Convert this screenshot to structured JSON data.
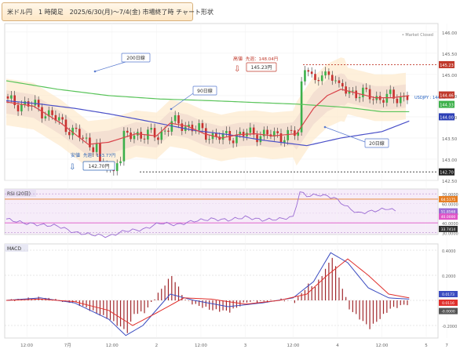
{
  "title": "米ドル円　1 時間足　2025/6/30(月)〜7/4(金) 市場終了時 チャート形状",
  "market_closed": "• Market Closed",
  "chart_data": [
    {
      "type": "candlestick",
      "panel": "price",
      "series": [
        {
          "name": "200日線",
          "color": "#59c45a",
          "values": [
            [
              0,
              144.85
            ],
            [
              15,
              144.65
            ],
            [
              30,
              144.5
            ],
            [
              45,
              144.42
            ],
            [
              60,
              144.38
            ],
            [
              75,
              144.33
            ],
            [
              85,
              144.3
            ],
            [
              100,
              144.22
            ],
            [
              110,
              144.12
            ]
          ]
        },
        {
          "name": "90日線",
          "color": "#4a50c8",
          "values": [
            [
              0,
              144.38
            ],
            [
              10,
              144.3
            ],
            [
              20,
              144.2
            ],
            [
              30,
              144.07
            ],
            [
              40,
              143.92
            ],
            [
              55,
              143.68
            ],
            [
              65,
              143.58
            ],
            [
              75,
              143.45
            ],
            [
              88,
              143.32
            ],
            [
              98,
              143.5
            ],
            [
              110,
              143.65
            ],
            [
              118,
              143.9
            ]
          ]
        },
        {
          "name": "20日線",
          "color": "#d9434a",
          "values": [
            [
              0,
              144.35
            ],
            [
              8,
              144.25
            ],
            [
              16,
              143.85
            ],
            [
              24,
              143.35
            ],
            [
              30,
              143.4
            ],
            [
              38,
              143.6
            ],
            [
              44,
              143.55
            ],
            [
              48,
              143.85
            ],
            [
              53,
              143.78
            ],
            [
              58,
              143.6
            ],
            [
              63,
              143.5
            ],
            [
              68,
              143.58
            ],
            [
              73,
              143.6
            ],
            [
              78,
              143.55
            ],
            [
              85,
              143.6
            ],
            [
              90,
              144.2
            ],
            [
              94,
              144.5
            ],
            [
              98,
              144.65
            ],
            [
              103,
              144.55
            ],
            [
              108,
              144.45
            ],
            [
              113,
              144.45
            ],
            [
              118,
              144.5
            ]
          ]
        }
      ],
      "x_ticks": [
        "12:00",
        "7月",
        "12:00",
        "2",
        "12:00",
        "3",
        "12:00",
        "4",
        "12:00",
        "5",
        "7"
      ],
      "y_ticks": [
        142.5,
        143.0,
        143.5,
        144.0,
        144.5,
        145.0,
        145.5,
        146.0
      ],
      "ylim": [
        142.5,
        146.2
      ],
      "annotations": {
        "high_label": "高値",
        "high_prev": "先週：148.04円",
        "high_value": "145.23円",
        "low_label": "安値",
        "low_prev": "先週：143.77円",
        "low_value": "142.70円",
        "line_200": "200日線",
        "line_90": "90日線",
        "line_20": "20日線",
        "symbol": "USDJPY : 144.47"
      },
      "price_tags": {
        "top": "145.23",
        "red": "144.46",
        "green": "144.33",
        "blue": "144.00",
        "bottom": "142.70"
      }
    },
    {
      "type": "line",
      "panel": "rsi",
      "title": "RSI (20日)",
      "series": [
        {
          "name": "RSI",
          "color": "#9b6bd3",
          "values": [
            [
              0,
              44
            ],
            [
              5,
              40
            ],
            [
              10,
              38
            ],
            [
              15,
              37
            ],
            [
              20,
              30
            ],
            [
              25,
              28
            ],
            [
              30,
              26
            ],
            [
              35,
              32
            ],
            [
              40,
              33
            ],
            [
              45,
              40
            ],
            [
              50,
              38
            ],
            [
              55,
              42
            ],
            [
              60,
              44
            ],
            [
              65,
              43
            ],
            [
              70,
              46
            ],
            [
              75,
              43
            ],
            [
              80,
              44
            ],
            [
              84,
              46
            ],
            [
              86,
              72
            ],
            [
              88,
              68
            ],
            [
              92,
              69
            ],
            [
              96,
              66
            ],
            [
              100,
              56
            ],
            [
              103,
              50
            ],
            [
              107,
              52
            ],
            [
              112,
              55
            ],
            [
              114,
              52
            ]
          ]
        }
      ],
      "y_ticks": [
        "70.0000",
        "60.0000",
        "50.0000",
        "40.0000",
        "30.0000"
      ],
      "ylim": [
        28,
        75
      ],
      "tags": {
        "top": "64.5175",
        "mid1": "51.8568",
        "mid2": "40.0000",
        "bottom": "33.7414"
      }
    },
    {
      "type": "bar+line",
      "panel": "macd",
      "title": "MACD",
      "series": [
        {
          "name": "MACD",
          "color": "#3b4cc0",
          "values": [
            [
              0,
              0.0
            ],
            [
              10,
              0.02
            ],
            [
              20,
              -0.02
            ],
            [
              30,
              -0.15
            ],
            [
              35,
              -0.28
            ],
            [
              40,
              -0.2
            ],
            [
              48,
              0.05
            ],
            [
              55,
              0.0
            ],
            [
              65,
              -0.05
            ],
            [
              75,
              -0.02
            ],
            [
              84,
              0.02
            ],
            [
              90,
              0.15
            ],
            [
              95,
              0.38
            ],
            [
              100,
              0.3
            ],
            [
              106,
              0.1
            ],
            [
              112,
              0.02
            ],
            [
              118,
              0.01
            ]
          ]
        },
        {
          "name": "Signal",
          "color": "#e0302c",
          "values": [
            [
              0,
              0.0
            ],
            [
              10,
              0.01
            ],
            [
              20,
              -0.01
            ],
            [
              30,
              -0.08
            ],
            [
              37,
              -0.2
            ],
            [
              44,
              -0.1
            ],
            [
              52,
              0.02
            ],
            [
              60,
              0.01
            ],
            [
              70,
              -0.03
            ],
            [
              80,
              0.0
            ],
            [
              88,
              0.05
            ],
            [
              94,
              0.2
            ],
            [
              100,
              0.33
            ],
            [
              106,
              0.2
            ],
            [
              112,
              0.05
            ],
            [
              118,
              0.02
            ]
          ]
        }
      ],
      "y_ticks": [
        "0.4000",
        "0.2000",
        "0.0173",
        "0.0116",
        "-0.0000",
        "-0.2000"
      ],
      "ylim": [
        -0.3,
        0.45
      ]
    }
  ]
}
